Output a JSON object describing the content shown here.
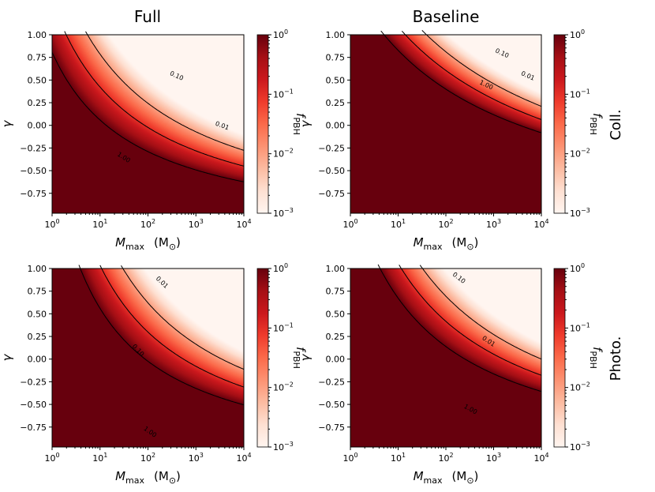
{
  "figure": {
    "column_titles": [
      "Full",
      "Baseline"
    ],
    "row_labels": [
      "Coll.",
      "Photo."
    ]
  },
  "chart_data": [
    {
      "type": "heatmap",
      "panel": "Full / Coll.",
      "title": "Full",
      "row_label": "Coll.",
      "xlabel_main": "M",
      "xlabel_sub": "max",
      "xlabel_unit": "(M",
      "xlabel_unit_sub": "⊙",
      "xlabel_unit_close": ")",
      "ylabel": "γ",
      "xscale": "log",
      "xlim": [
        1,
        10000
      ],
      "xticks": [
        {
          "base": "10",
          "exp": "0"
        },
        {
          "base": "10",
          "exp": "1"
        },
        {
          "base": "10",
          "exp": "2"
        },
        {
          "base": "10",
          "exp": "3"
        },
        {
          "base": "10",
          "exp": "4"
        }
      ],
      "ylim": [
        -0.97,
        1.0
      ],
      "yticks": [
        "−0.75",
        "−0.50",
        "−0.25",
        "0.00",
        "0.25",
        "0.50",
        "0.75",
        "1.00"
      ],
      "colorbar_label_main": "f",
      "colorbar_label_sub": "PBH",
      "colorbar_ticks": [
        {
          "base": "10",
          "exp": "−3"
        },
        {
          "base": "10",
          "exp": "−2"
        },
        {
          "base": "10",
          "exp": "−1"
        },
        {
          "base": "10",
          "exp": "0"
        }
      ],
      "colorbar_range": [
        0.001,
        1
      ],
      "model": {
        "k": 3.6,
        "a": 1.75
      },
      "contours": [
        {
          "level": 1.0,
          "label": "1.00",
          "label_at": [
            1.5,
            -0.35
          ]
        },
        {
          "level": 0.1,
          "label": "0.10",
          "label_at": [
            2.6,
            0.55
          ]
        },
        {
          "level": 0.01,
          "label": "0.01",
          "label_at": [
            3.55,
            0.0
          ]
        }
      ]
    },
    {
      "type": "heatmap",
      "panel": "Baseline / Coll.",
      "title": "Baseline",
      "row_label": "Coll.",
      "xlabel_main": "M",
      "xlabel_sub": "max",
      "xlabel_unit": "(M",
      "xlabel_unit_sub": "⊙",
      "xlabel_unit_close": ")",
      "ylabel": "γ",
      "xscale": "log",
      "xlim": [
        1,
        10000
      ],
      "xticks": [
        {
          "base": "10",
          "exp": "0"
        },
        {
          "base": "10",
          "exp": "1"
        },
        {
          "base": "10",
          "exp": "2"
        },
        {
          "base": "10",
          "exp": "3"
        },
        {
          "base": "10",
          "exp": "4"
        }
      ],
      "ylim": [
        -0.97,
        1.0
      ],
      "yticks": [
        "−0.75",
        "−0.50",
        "−0.25",
        "0.00",
        "0.25",
        "0.50",
        "0.75",
        "1.00"
      ],
      "colorbar_label_main": "f",
      "colorbar_label_sub": "PBH",
      "colorbar_ticks": [
        {
          "base": "10",
          "exp": "−3"
        },
        {
          "base": "10",
          "exp": "−2"
        },
        {
          "base": "10",
          "exp": "−1"
        },
        {
          "base": "10",
          "exp": "0"
        }
      ],
      "colorbar_range": [
        0.001,
        1
      ],
      "model": {
        "k": 8.0,
        "a": 2.85
      },
      "contours": [
        {
          "level": 1.0,
          "label": "1.00",
          "label_at": [
            2.85,
            0.45
          ]
        },
        {
          "level": 0.1,
          "label": "0.10",
          "label_at": [
            3.18,
            0.8
          ]
        },
        {
          "level": 0.01,
          "label": "0.01",
          "label_at": [
            3.72,
            0.55
          ]
        }
      ]
    },
    {
      "type": "heatmap",
      "panel": "Full / Photo.",
      "title": "Full",
      "row_label": "Photo.",
      "xlabel_main": "M",
      "xlabel_sub": "max",
      "xlabel_unit": "(M",
      "xlabel_unit_sub": "⊙",
      "xlabel_unit_close": ")",
      "ylabel": "γ",
      "xscale": "log",
      "xlim": [
        1,
        10000
      ],
      "xticks": [
        {
          "base": "10",
          "exp": "0"
        },
        {
          "base": "10",
          "exp": "1"
        },
        {
          "base": "10",
          "exp": "2"
        },
        {
          "base": "10",
          "exp": "3"
        },
        {
          "base": "10",
          "exp": "4"
        }
      ],
      "ylim": [
        -0.97,
        1.0
      ],
      "yticks": [
        "−0.75",
        "−0.50",
        "−0.25",
        "0.00",
        "0.25",
        "0.50",
        "0.75",
        "1.00"
      ],
      "colorbar_label_main": "f",
      "colorbar_label_sub": "PBH",
      "colorbar_ticks": [
        {
          "base": "10",
          "exp": "−3"
        },
        {
          "base": "10",
          "exp": "−2"
        },
        {
          "base": "10",
          "exp": "−1"
        },
        {
          "base": "10",
          "exp": "0"
        }
      ],
      "colorbar_range": [
        0.001,
        1
      ],
      "model": {
        "k": 3.8,
        "a": 1.1
      },
      "contours": [
        {
          "level": 1.0,
          "label": "1.00",
          "label_at": [
            2.05,
            -0.8
          ]
        },
        {
          "level": 0.1,
          "label": "0.10",
          "label_at": [
            1.8,
            0.1
          ]
        },
        {
          "level": 0.01,
          "label": "0.01",
          "label_at": [
            2.3,
            0.85
          ]
        }
      ]
    },
    {
      "type": "heatmap",
      "panel": "Baseline / Photo.",
      "title": "Baseline",
      "row_label": "Photo.",
      "xlabel_main": "M",
      "xlabel_sub": "max",
      "xlabel_unit": "(M",
      "xlabel_unit_sub": "⊙",
      "xlabel_unit_close": ")",
      "ylabel": "γ",
      "xscale": "log",
      "xlim": [
        1,
        10000
      ],
      "xticks": [
        {
          "base": "10",
          "exp": "0"
        },
        {
          "base": "10",
          "exp": "1"
        },
        {
          "base": "10",
          "exp": "2"
        },
        {
          "base": "10",
          "exp": "3"
        },
        {
          "base": "10",
          "exp": "4"
        }
      ],
      "ylim": [
        -0.97,
        1.0
      ],
      "yticks": [
        "−0.75",
        "−0.50",
        "−0.25",
        "0.00",
        "0.25",
        "0.50",
        "0.75",
        "1.00"
      ],
      "colorbar_label_main": "f",
      "colorbar_label_sub": "PBH",
      "colorbar_ticks": [
        {
          "base": "10",
          "exp": "−3"
        },
        {
          "base": "10",
          "exp": "−2"
        },
        {
          "base": "10",
          "exp": "−1"
        },
        {
          "base": "10",
          "exp": "0"
        }
      ],
      "colorbar_range": [
        0.001,
        1
      ],
      "model": {
        "k": 5.0,
        "a": 1.6
      },
      "contours": [
        {
          "level": 1.0,
          "label": "1.00",
          "label_at": [
            2.52,
            -0.55
          ]
        },
        {
          "level": 0.1,
          "label": "0.10",
          "label_at": [
            2.28,
            0.9
          ]
        },
        {
          "level": 0.01,
          "label": "0.01",
          "label_at": [
            2.9,
            0.2
          ]
        }
      ]
    }
  ],
  "colors": {
    "colormap": [
      "#fff5f0",
      "#fee0d2",
      "#fcbba1",
      "#fc9272",
      "#fb6a4a",
      "#ef3b2c",
      "#cb181d",
      "#a50f15",
      "#67000d"
    ],
    "contour_line": "#000000",
    "background": "#ffffff"
  }
}
